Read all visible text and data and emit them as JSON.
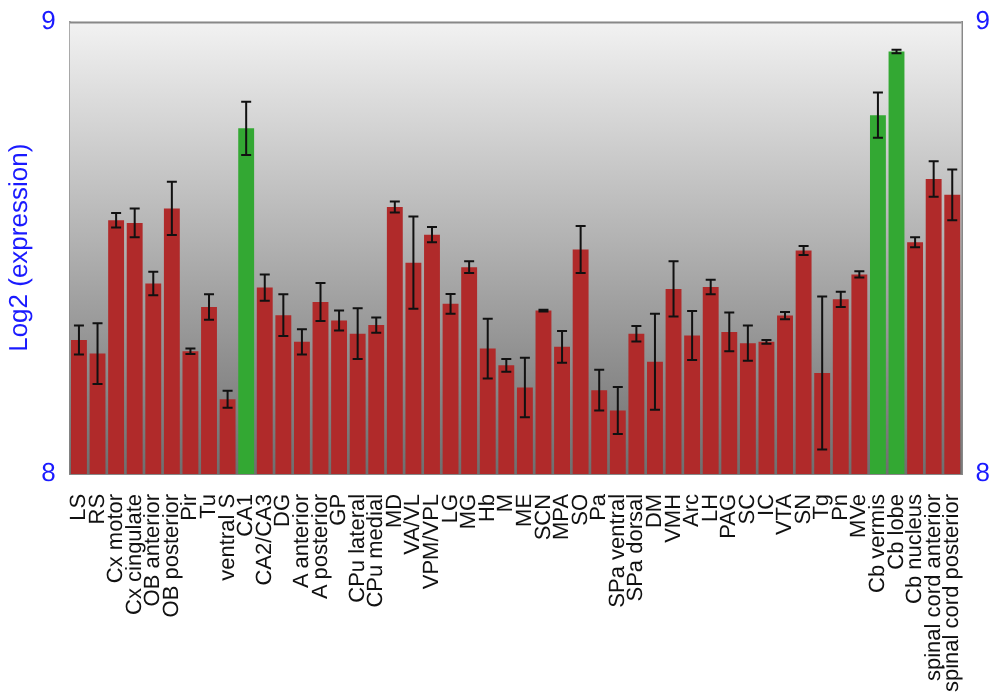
{
  "chart_data": {
    "type": "bar",
    "ylabel": "Log2 (expression)",
    "categories": [
      "LS",
      "RS",
      "Cx motor",
      "Cx cingulate",
      "OB anterior",
      "OB posterior",
      "Pir",
      "Tu",
      "ventral S",
      "CA1",
      "CA2/CA3",
      "DG",
      "A anterior",
      "A posterior",
      "GP",
      "CPu lateral",
      "CPu medial",
      "MD",
      "VA/VL",
      "VPM/VPL",
      "LG",
      "MG",
      "Hb",
      "M",
      "ME",
      "SCN",
      "MPA",
      "SO",
      "Pa",
      "SPa ventral",
      "SPa dorsal",
      "DM",
      "VMH",
      "Arc",
      "LH",
      "PAG",
      "SC",
      "IC",
      "VTA",
      "SN",
      "Tg",
      "Pn",
      "MVe",
      "Cb vermis",
      "Cb lobe",
      "Cb nucleus",
      "spinal cord anterior",
      "spinal cord posterior"
    ],
    "values": [
      8.296,
      8.266,
      8.561,
      8.555,
      8.421,
      8.587,
      8.271,
      8.369,
      8.165,
      8.764,
      8.412,
      8.351,
      8.292,
      8.38,
      8.339,
      8.31,
      8.329,
      8.59,
      8.467,
      8.529,
      8.376,
      8.457,
      8.277,
      8.24,
      8.191,
      8.361,
      8.281,
      8.496,
      8.185,
      8.14,
      8.31,
      8.248,
      8.409,
      8.306,
      8.413,
      8.314,
      8.289,
      8.292,
      8.35,
      8.494,
      8.223,
      8.386,
      8.441,
      8.793,
      8.934,
      8.512,
      8.652,
      8.617
    ],
    "errors": [
      0.032,
      0.067,
      0.016,
      0.032,
      0.026,
      0.059,
      0.006,
      0.028,
      0.019,
      0.059,
      0.029,
      0.046,
      0.028,
      0.042,
      0.022,
      0.056,
      0.017,
      0.012,
      0.102,
      0.017,
      0.022,
      0.013,
      0.066,
      0.014,
      0.066,
      0.002,
      0.035,
      0.052,
      0.045,
      0.052,
      0.017,
      0.106,
      0.061,
      0.054,
      0.016,
      0.043,
      0.039,
      0.004,
      0.008,
      0.01,
      0.169,
      0.017,
      0.007,
      0.05,
      0.004,
      0.011,
      0.039,
      0.056
    ],
    "colors": [
      "#b02a2a",
      "#b02a2a",
      "#b02a2a",
      "#b02a2a",
      "#b02a2a",
      "#b02a2a",
      "#b02a2a",
      "#b02a2a",
      "#b02a2a",
      "#33a833",
      "#b02a2a",
      "#b02a2a",
      "#b02a2a",
      "#b02a2a",
      "#b02a2a",
      "#b02a2a",
      "#b02a2a",
      "#b02a2a",
      "#b02a2a",
      "#b02a2a",
      "#b02a2a",
      "#b02a2a",
      "#b02a2a",
      "#b02a2a",
      "#b02a2a",
      "#b02a2a",
      "#b02a2a",
      "#b02a2a",
      "#b02a2a",
      "#b02a2a",
      "#b02a2a",
      "#b02a2a",
      "#b02a2a",
      "#b02a2a",
      "#b02a2a",
      "#b02a2a",
      "#b02a2a",
      "#b02a2a",
      "#b02a2a",
      "#b02a2a",
      "#b02a2a",
      "#b02a2a",
      "#b02a2a",
      "#33a833",
      "#33a833",
      "#b02a2a",
      "#b02a2a",
      "#b02a2a"
    ],
    "ylim": [
      8,
      9
    ],
    "yticks": [
      8,
      9
    ],
    "y2lim": [
      8,
      9
    ],
    "y2ticks": [
      8,
      9
    ],
    "grid": false,
    "legend": false
  }
}
